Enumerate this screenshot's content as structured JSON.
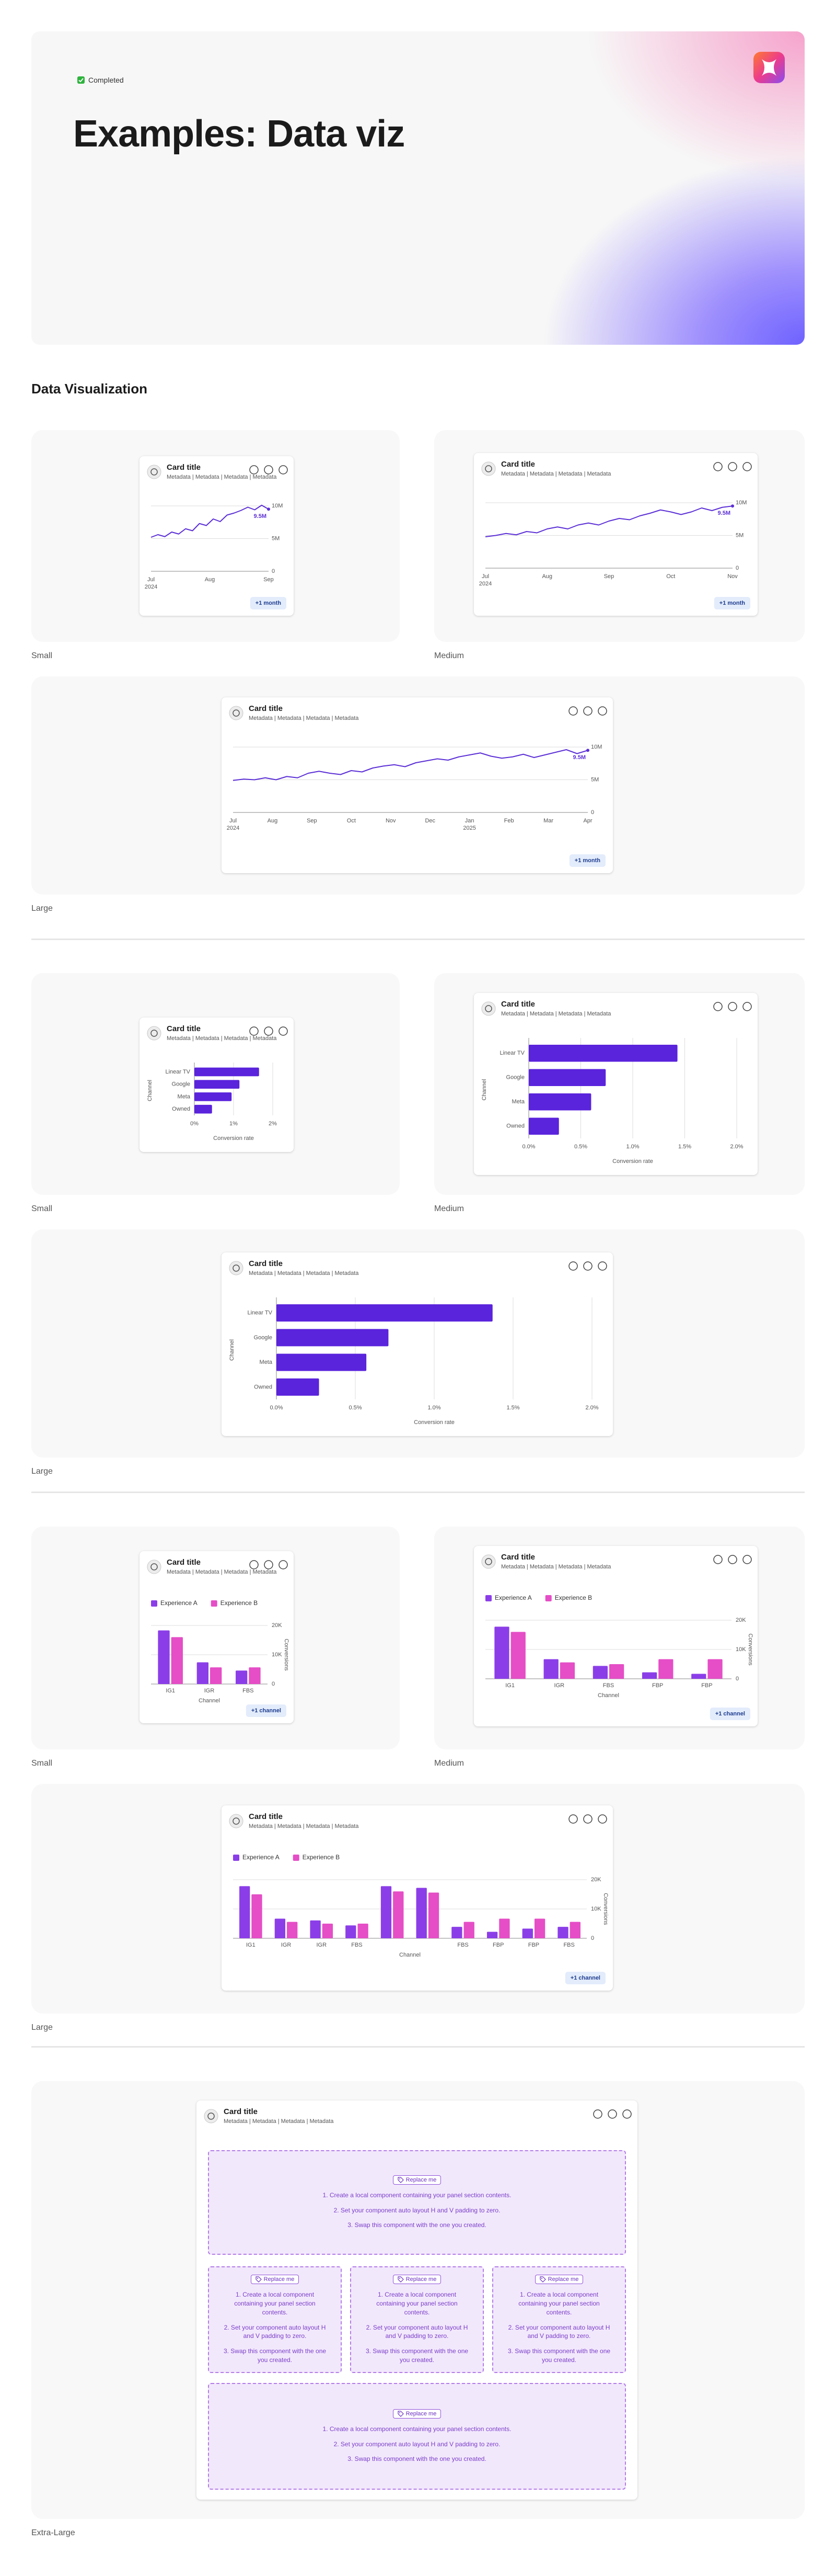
{
  "header": {
    "badge": "Completed",
    "title": "Examples: Data viz"
  },
  "section_title": "Data Visualization",
  "chart_data": [
    {
      "type": "line",
      "caption": "Small",
      "card_title": "Card title",
      "metadata": "Metadata | Metadata | Metadata | Metadata",
      "action": "+1 month",
      "color": "#5b2fd6",
      "xticks": [
        "Jul",
        "Aug",
        "Sep"
      ],
      "xtick_years": [
        "2024",
        null,
        null
      ],
      "values": [
        5.2,
        5.6,
        5.3,
        6.0,
        5.7,
        6.5,
        6.2,
        7.3,
        7.0,
        8.0,
        7.6,
        8.6,
        8.9,
        9.3,
        9.8,
        9.4,
        10.1,
        9.5
      ],
      "value_labels": [
        null,
        null,
        null,
        null,
        null,
        null,
        null,
        null,
        null,
        null,
        null,
        null,
        null,
        null,
        null,
        null,
        null,
        "9.5M"
      ],
      "ylim": [
        0,
        10
      ],
      "yticks": [
        0,
        {
          "value": 5,
          "label": "5M"
        },
        {
          "value": 10,
          "label": "10M"
        }
      ],
      "grid": true
    },
    {
      "type": "line",
      "caption": "Medium",
      "card_title": "Card title",
      "metadata": "Metadata | Metadata | Metadata | Metadata",
      "action": "+1 month",
      "color": "#5b2fd6",
      "xticks": [
        "Jul",
        "Aug",
        "Sep",
        "Oct",
        "Nov"
      ],
      "xtick_years": [
        "2024",
        null,
        null,
        null,
        null
      ],
      "values": [
        4.8,
        5.0,
        5.3,
        5.1,
        5.6,
        5.4,
        6.0,
        6.3,
        6.0,
        6.6,
        6.9,
        6.6,
        7.2,
        7.6,
        7.4,
        8.0,
        8.4,
        8.9,
        8.6,
        8.2,
        8.6,
        9.2,
        8.8,
        9.3,
        9.5
      ],
      "value_labels": [
        null,
        null,
        null,
        null,
        null,
        null,
        null,
        null,
        null,
        null,
        null,
        null,
        null,
        null,
        null,
        null,
        null,
        null,
        null,
        null,
        null,
        null,
        null,
        null,
        "9.5M"
      ],
      "ylim": [
        0,
        10
      ],
      "yticks": [
        0,
        {
          "value": 5,
          "label": "5M"
        },
        {
          "value": 10,
          "label": "10M"
        }
      ],
      "grid": true
    },
    {
      "type": "line",
      "caption": "Large",
      "card_title": "Card title",
      "metadata": "Metadata | Metadata | Metadata | Metadata",
      "action": "+1 month",
      "color": "#5b2fd6",
      "xticks": [
        "Jul",
        "Aug",
        "Sep",
        "Oct",
        "Nov",
        "Dec",
        "Jan",
        "Feb",
        "Mar",
        "Apr"
      ],
      "xtick_years": [
        "2024",
        null,
        null,
        null,
        null,
        null,
        "2025",
        null,
        null,
        null
      ],
      "values": [
        4.9,
        5.1,
        5.0,
        5.3,
        5.0,
        5.5,
        5.3,
        6.0,
        6.3,
        6.0,
        5.8,
        6.4,
        6.2,
        6.8,
        7.1,
        7.3,
        7.0,
        7.6,
        7.9,
        8.2,
        8.0,
        8.5,
        8.8,
        9.1,
        8.6,
        8.3,
        8.5,
        8.9,
        8.4,
        8.8,
        9.2,
        9.6,
        9.0,
        9.5
      ],
      "value_labels": [
        null,
        null,
        null,
        null,
        null,
        null,
        null,
        null,
        null,
        null,
        null,
        null,
        null,
        null,
        null,
        null,
        null,
        null,
        null,
        null,
        null,
        null,
        null,
        null,
        null,
        null,
        null,
        null,
        null,
        null,
        null,
        null,
        null,
        "9.5M"
      ],
      "ylim": [
        0,
        10
      ],
      "yticks": [
        0,
        {
          "value": 5,
          "label": "5M"
        },
        {
          "value": 10,
          "label": "10M"
        }
      ],
      "grid": true
    },
    {
      "type": "bar",
      "horizontal": true,
      "caption": "Small",
      "card_title": "Card title",
      "metadata": "Metadata | Metadata | Metadata | Metadata",
      "color": "#5a23dc",
      "categories": [
        "Linear TV",
        "Google",
        "Meta",
        "Owned"
      ],
      "values": [
        1.65,
        1.15,
        0.95,
        0.45
      ],
      "xlim": [
        0,
        2
      ],
      "xticks": [
        {
          "value": 0,
          "label": "0%"
        },
        {
          "value": 1,
          "label": "1%"
        },
        {
          "value": 2,
          "label": "2%"
        }
      ],
      "x_title": "Conversion rate",
      "y_title": "Channel",
      "grid": true
    },
    {
      "type": "bar",
      "horizontal": true,
      "caption": "Medium",
      "card_title": "Card title",
      "metadata": "Metadata | Metadata | Metadata | Metadata",
      "color": "#5a23dc",
      "categories": [
        "Linear TV",
        "Google",
        "Meta",
        "Owned"
      ],
      "values": [
        1.43,
        0.74,
        0.6,
        0.29
      ],
      "xlim": [
        0,
        2
      ],
      "xticks": [
        {
          "value": 0,
          "label": "0.0%"
        },
        {
          "value": 0.5,
          "label": "0.5%"
        },
        {
          "value": 1,
          "label": "1.0%"
        },
        {
          "value": 1.5,
          "label": "1.5%"
        },
        {
          "value": 2,
          "label": "2.0%"
        }
      ],
      "x_title": "Conversion rate",
      "y_title": "Channel",
      "grid": true
    },
    {
      "type": "bar",
      "horizontal": true,
      "caption": "Large",
      "card_title": "Card title",
      "metadata": "Metadata | Metadata | Metadata | Metadata",
      "color": "#5a23dc",
      "categories": [
        "Linear TV",
        "Google",
        "Meta",
        "Owned"
      ],
      "values": [
        1.37,
        0.71,
        0.57,
        0.27
      ],
      "xlim": [
        0,
        2
      ],
      "xticks": [
        {
          "value": 0,
          "label": "0.0%"
        },
        {
          "value": 0.5,
          "label": "0.5%"
        },
        {
          "value": 1,
          "label": "1.0%"
        },
        {
          "value": 1.5,
          "label": "1.5%"
        },
        {
          "value": 2,
          "label": "2.0%"
        }
      ],
      "x_title": "Conversion rate",
      "y_title": "Channel",
      "grid": true
    },
    {
      "type": "bar",
      "caption": "Small",
      "card_title": "Card title",
      "metadata": "Metadata | Metadata | Metadata | Metadata",
      "action": "+1 channel",
      "categories": [
        "IG1",
        "IGR",
        "FBS"
      ],
      "series": [
        {
          "name": "Experience A",
          "color": "#8b3ee8",
          "values": [
            18.3,
            7.4,
            4.6
          ]
        },
        {
          "name": "Experience B",
          "color": "#e54ec6",
          "values": [
            16,
            5.7,
            5.7
          ]
        }
      ],
      "ylim": [
        0,
        20
      ],
      "yticks": [
        0,
        {
          "value": 10,
          "label": "10K"
        },
        {
          "value": 20,
          "label": "20K"
        }
      ],
      "x_title": "Channel",
      "y_title": "Conversions",
      "grid": true
    },
    {
      "type": "bar",
      "caption": "Medium",
      "card_title": "Card title",
      "metadata": "Metadata | Metadata | Metadata | Metadata",
      "action": "+1 channel",
      "categories": [
        "IG1",
        "IGR",
        "FBS",
        "FBP",
        "FBP"
      ],
      "series": [
        {
          "name": "Experience A",
          "color": "#8b3ee8",
          "values": [
            17.8,
            6.7,
            4.4,
            2.2,
            1.7
          ]
        },
        {
          "name": "Experience B",
          "color": "#e54ec6",
          "values": [
            16,
            5.6,
            5,
            6.7,
            6.7
          ]
        }
      ],
      "ylim": [
        0,
        20
      ],
      "yticks": [
        0,
        {
          "value": 10,
          "label": "10K"
        },
        {
          "value": 20,
          "label": "20K"
        }
      ],
      "x_title": "Channel",
      "y_title": "Conversions",
      "grid": true
    },
    {
      "type": "bar",
      "caption": "Large",
      "card_title": "Card title",
      "metadata": "Metadata | Metadata | Metadata | Metadata",
      "action": "+1 channel",
      "categories": [
        "IG1",
        "IGR",
        "IGR",
        "FBS",
        null,
        null,
        "FBS",
        "FBP",
        "FBP",
        "FBS"
      ],
      "series": [
        {
          "name": "Experience A",
          "color": "#8b3ee8",
          "values": [
            17.8,
            6.7,
            6.1,
            4.4,
            17.8,
            17.2,
            3.9,
            2.2,
            3.3,
            3.9
          ]
        },
        {
          "name": "Experience B",
          "color": "#e54ec6",
          "values": [
            15,
            5.6,
            5,
            5,
            16,
            15.6,
            5.6,
            6.7,
            6.7,
            5.6
          ]
        }
      ],
      "ylim": [
        0,
        20
      ],
      "yticks": [
        0,
        {
          "value": 10,
          "label": "10K"
        },
        {
          "value": 20,
          "label": "20K"
        }
      ],
      "x_title": "Channel",
      "y_title": "Conversions",
      "grid": true
    }
  ],
  "placeholder": {
    "card_title": "Card title",
    "metadata": "Metadata | Metadata | Metadata | Metadata",
    "tag": "Replace me",
    "steps": [
      "1. Create a local component containing your panel section contents.",
      "2. Set your component auto layout H and V padding to zero.",
      "3. Swap this component with the one you created."
    ],
    "caption": "Extra-Large"
  }
}
